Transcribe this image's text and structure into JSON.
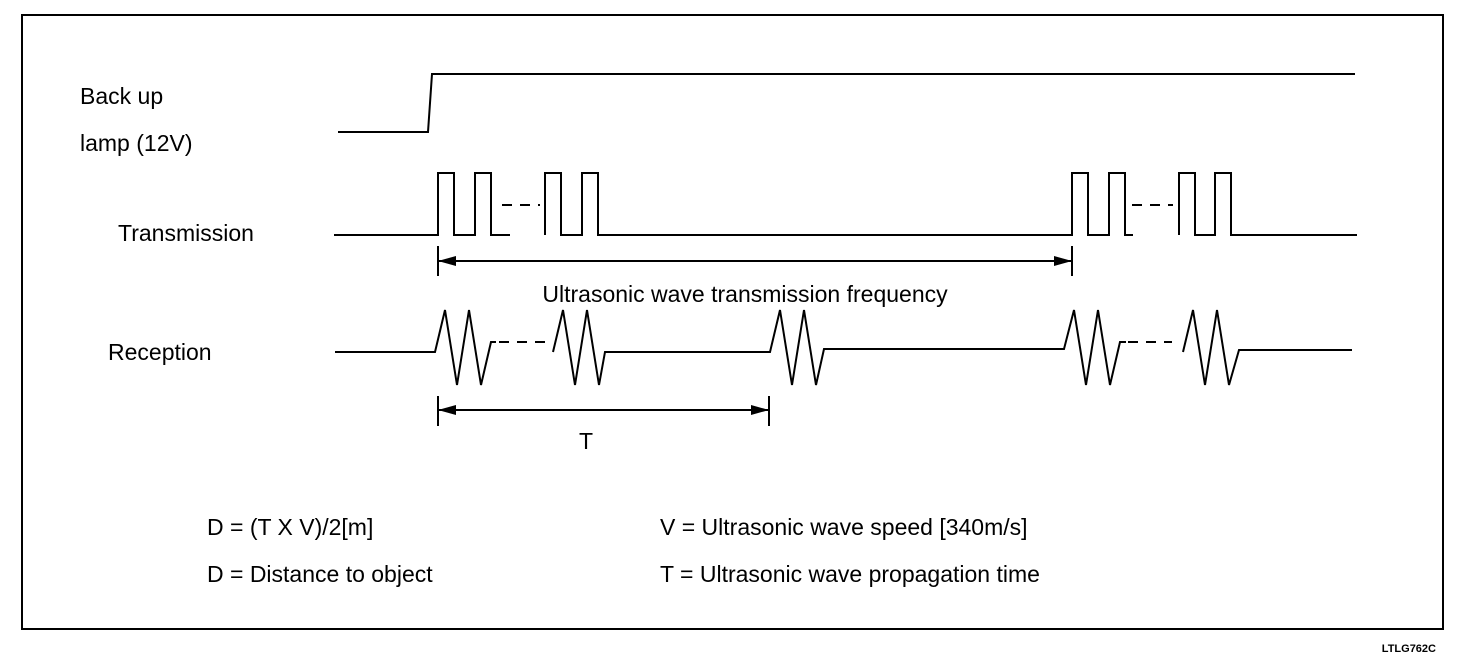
{
  "signals": {
    "backup_lamp_line1": "Back up",
    "backup_lamp_line2": "lamp (12V)",
    "transmission": "Transmission",
    "reception": "Reception"
  },
  "dimensions": {
    "frequency_label": "Ultrasonic wave transmission frequency",
    "time_label": "T"
  },
  "formulas": {
    "distance_formula": "D = (T X V)/2[m]",
    "distance_definition": "D = Distance to object",
    "speed_definition": "V = Ultrasonic wave speed [340m/s]",
    "time_definition": "T = Ultrasonic wave propagation time"
  },
  "figure_code": "LTLG762C"
}
